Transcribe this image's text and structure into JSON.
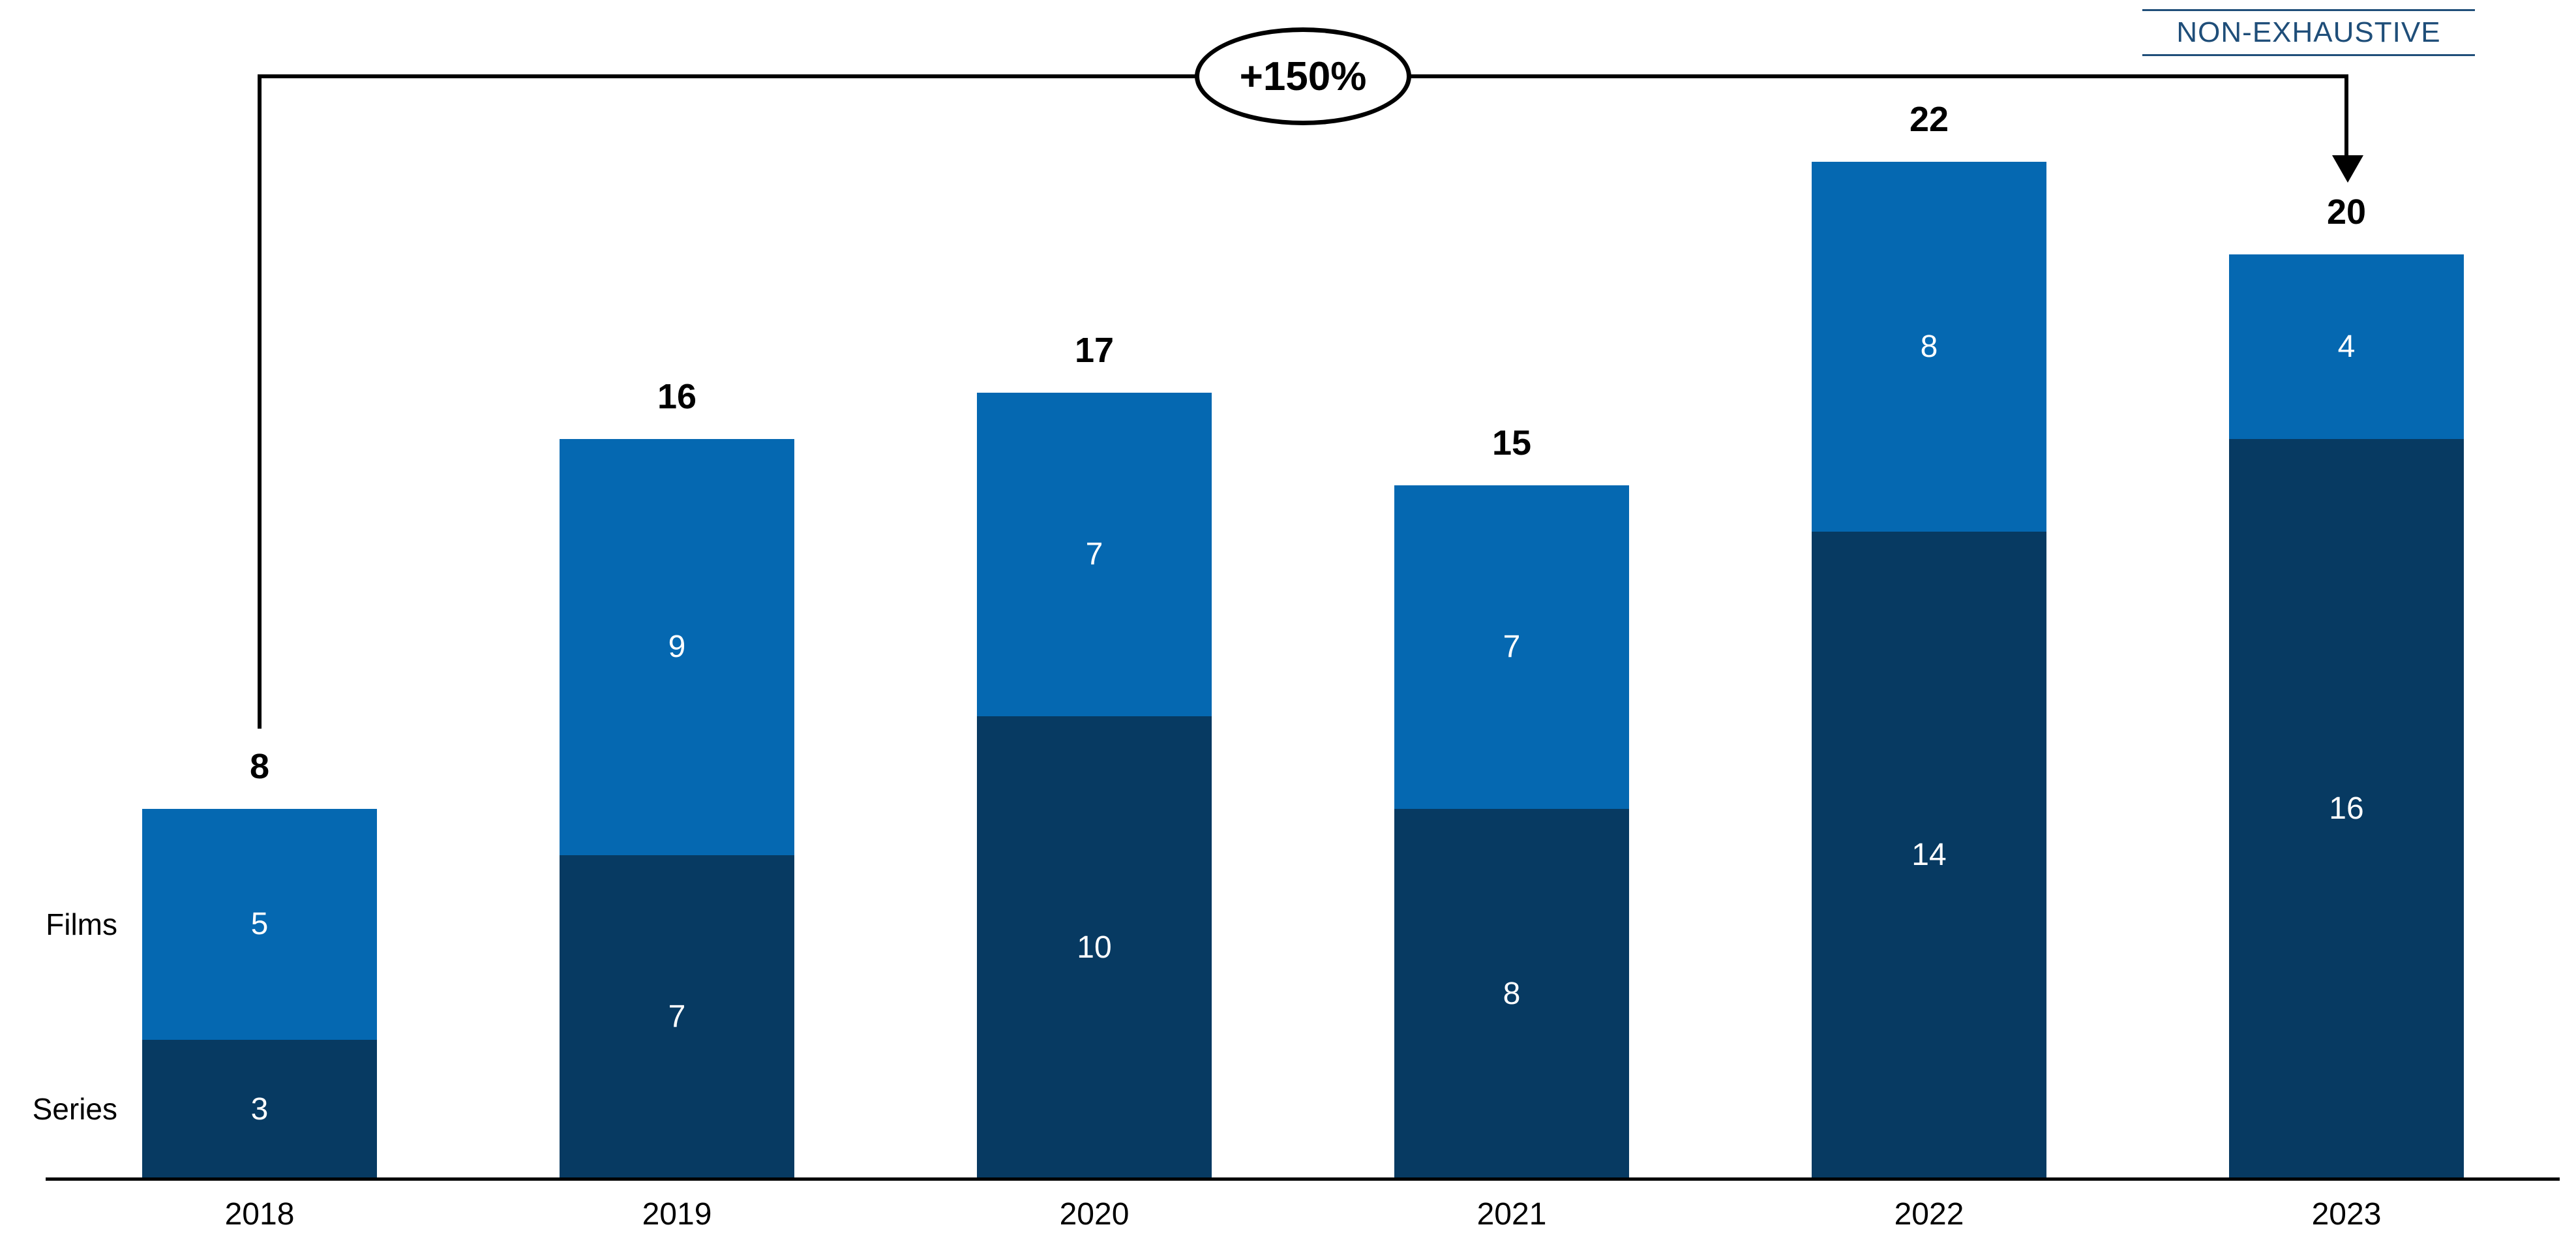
{
  "disclaimer": {
    "label": "NON-EXHAUSTIVE",
    "color": "#1F4E79"
  },
  "row_labels": {
    "top": "Films",
    "bottom": "Series"
  },
  "chart_data": {
    "type": "bar",
    "stacked": true,
    "title": "",
    "xlabel": "",
    "ylabel": "",
    "categories": [
      "2018",
      "2019",
      "2020",
      "2021",
      "2022",
      "2023"
    ],
    "series": [
      {
        "name": "Series",
        "color": "#073A62",
        "values": [
          3,
          7,
          10,
          8,
          14,
          16
        ]
      },
      {
        "name": "Films",
        "color": "#0568B1",
        "values": [
          5,
          9,
          7,
          7,
          8,
          4
        ]
      }
    ],
    "totals": [
      8,
      16,
      17,
      15,
      22,
      20
    ],
    "ylim": [
      0,
      22
    ],
    "grid": false,
    "legend_position": "row-labels-left-of-first-bar",
    "segment_label_color": "#ffffff",
    "total_label_color": "#000000",
    "axis_color": "#000000",
    "annotations": [
      {
        "type": "growth-arrow",
        "label": "+150%",
        "from_category": "2018",
        "to_category": "2023"
      }
    ],
    "disclaimer": "NON-EXHAUSTIVE"
  }
}
